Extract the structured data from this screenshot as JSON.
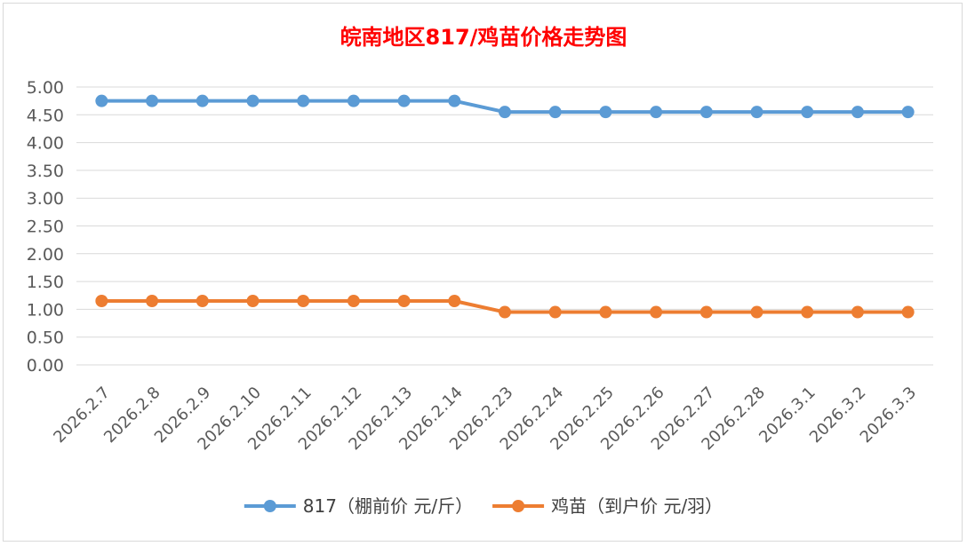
{
  "chart_data": {
    "type": "line",
    "title": "皖南地区817/鸡苗价格走势图",
    "xlabel": "",
    "ylabel": "",
    "categories": [
      "2026.2.7",
      "2026.2.8",
      "2026.2.9",
      "2026.2.10",
      "2026.2.11",
      "2026.2.12",
      "2026.2.13",
      "2026.2.14",
      "2026.2.23",
      "2026.2.24",
      "2026.2.25",
      "2026.2.26",
      "2026.2.27",
      "2026.2.28",
      "2026.3.1",
      "2026.3.2",
      "2026.3.3"
    ],
    "ylim": [
      0,
      5
    ],
    "yticks": [
      "0.00",
      "0.50",
      "1.00",
      "1.50",
      "2.00",
      "2.50",
      "3.00",
      "3.50",
      "4.00",
      "4.50",
      "5.00"
    ],
    "grid": true,
    "legend_position": "bottom",
    "series": [
      {
        "name": "817（棚前价 元/斤）",
        "color": "#5b9bd5",
        "values": [
          4.75,
          4.75,
          4.75,
          4.75,
          4.75,
          4.75,
          4.75,
          4.75,
          4.55,
          4.55,
          4.55,
          4.55,
          4.55,
          4.55,
          4.55,
          4.55,
          4.55
        ]
      },
      {
        "name": "鸡苗（到户价 元/羽）",
        "color": "#ed7d31",
        "values": [
          1.15,
          1.15,
          1.15,
          1.15,
          1.15,
          1.15,
          1.15,
          1.15,
          0.95,
          0.95,
          0.95,
          0.95,
          0.95,
          0.95,
          0.95,
          0.95,
          0.95
        ]
      }
    ]
  }
}
